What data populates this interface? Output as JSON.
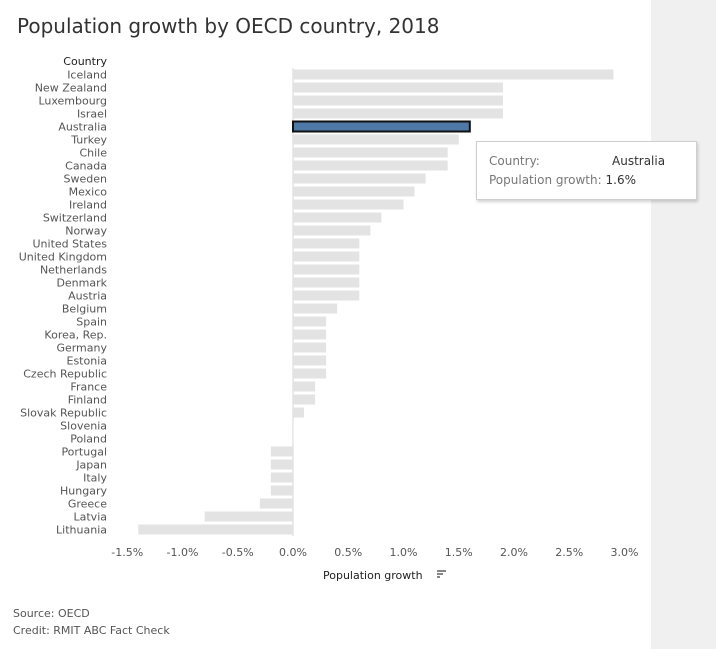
{
  "page": {
    "title": "Population growth by OECD country, 2018",
    "source": "Source: OECD",
    "credit": "Credit: RMIT ABC Fact Check"
  },
  "tooltip": {
    "country_label": "Country:",
    "country_value": "Australia",
    "growth_label": "Population growth:",
    "growth_value": "1.6%"
  },
  "colors": {
    "bar": "#e3e3e3",
    "highlight": "#4e79a7",
    "highlight_border": "#111111",
    "text": "#555555"
  },
  "chart_data": {
    "type": "bar",
    "orientation": "horizontal",
    "title": "Population growth by OECD country, 2018",
    "row_header": "Country",
    "xlabel": "Population growth",
    "ylabel": "Country",
    "xlim": [
      -1.5,
      3.0
    ],
    "xticks": [
      -1.5,
      -1.0,
      -0.5,
      0.0,
      0.5,
      1.0,
      1.5,
      2.0,
      2.5,
      3.0
    ],
    "xtick_labels": [
      "-1.5%",
      "-1.0%",
      "-0.5%",
      "0.0%",
      "0.5%",
      "1.0%",
      "1.5%",
      "2.0%",
      "2.5%",
      "3.0%"
    ],
    "highlighted": "Australia",
    "categories": [
      "Iceland",
      "New Zealand",
      "Luxembourg",
      "Israel",
      "Australia",
      "Turkey",
      "Chile",
      "Canada",
      "Sweden",
      "Mexico",
      "Ireland",
      "Switzerland",
      "Norway",
      "United States",
      "United Kingdom",
      "Netherlands",
      "Denmark",
      "Austria",
      "Belgium",
      "Spain",
      "Korea, Rep.",
      "Germany",
      "Estonia",
      "Czech Republic",
      "France",
      "Finland",
      "Slovak Republic",
      "Slovenia",
      "Poland",
      "Portugal",
      "Japan",
      "Italy",
      "Hungary",
      "Greece",
      "Latvia",
      "Lithuania"
    ],
    "values": [
      2.9,
      1.9,
      1.9,
      1.9,
      1.6,
      1.5,
      1.4,
      1.4,
      1.2,
      1.1,
      1.0,
      0.8,
      0.7,
      0.6,
      0.6,
      0.6,
      0.6,
      0.6,
      0.4,
      0.3,
      0.3,
      0.3,
      0.3,
      0.3,
      0.2,
      0.2,
      0.1,
      0.0,
      0.0,
      -0.2,
      -0.2,
      -0.2,
      -0.2,
      -0.3,
      -0.8,
      -1.4
    ]
  }
}
